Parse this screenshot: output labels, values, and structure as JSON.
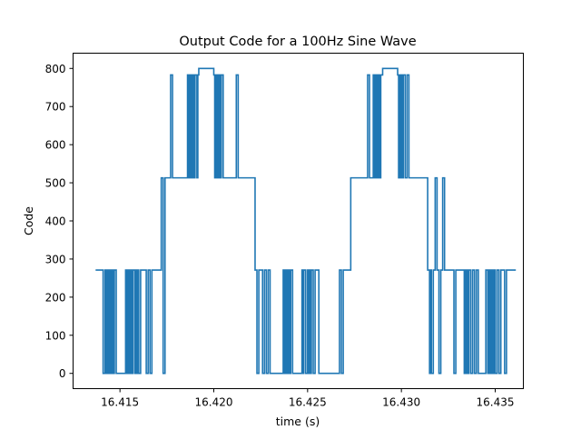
{
  "chart_data": {
    "type": "line",
    "title": "Output Code for a 100Hz Sine Wave",
    "xlabel": "time (s)",
    "ylabel": "Code",
    "xlim": [
      16.4125,
      16.4365
    ],
    "ylim": [
      -40,
      840
    ],
    "xticks": [
      16.415,
      16.42,
      16.425,
      16.43,
      16.435
    ],
    "xtick_labels": [
      "16.415",
      "16.420",
      "16.425",
      "16.430",
      "16.435"
    ],
    "yticks": [
      0,
      100,
      200,
      300,
      400,
      500,
      600,
      700,
      800
    ],
    "ytick_labels": [
      "0",
      "100",
      "200",
      "300",
      "400",
      "500",
      "600",
      "700",
      "800"
    ],
    "grid": false,
    "legend": "none",
    "series": [
      {
        "color": "#1f77b4",
        "steps": [
          [
            16.4137,
            271
          ],
          [
            16.4141,
            0
          ],
          [
            16.4142,
            271
          ],
          [
            16.41425,
            0
          ],
          [
            16.4143,
            271
          ],
          [
            16.41435,
            0
          ],
          [
            16.4144,
            271
          ],
          [
            16.41445,
            0
          ],
          [
            16.4145,
            271
          ],
          [
            16.41455,
            0
          ],
          [
            16.4146,
            271
          ],
          [
            16.41465,
            0
          ],
          [
            16.4147,
            271
          ],
          [
            16.4148,
            0
          ],
          [
            16.4153,
            271
          ],
          [
            16.41535,
            0
          ],
          [
            16.4154,
            271
          ],
          [
            16.41545,
            0
          ],
          [
            16.4155,
            271
          ],
          [
            16.41555,
            0
          ],
          [
            16.4156,
            271
          ],
          [
            16.41565,
            0
          ],
          [
            16.4157,
            271
          ],
          [
            16.4158,
            0
          ],
          [
            16.41585,
            271
          ],
          [
            16.4159,
            0
          ],
          [
            16.41595,
            271
          ],
          [
            16.416,
            0
          ],
          [
            16.4161,
            271
          ],
          [
            16.4163,
            271
          ],
          [
            16.4164,
            0
          ],
          [
            16.4165,
            271
          ],
          [
            16.4166,
            0
          ],
          [
            16.4167,
            271
          ],
          [
            16.4168,
            271
          ],
          [
            16.4172,
            513
          ],
          [
            16.4173,
            0
          ],
          [
            16.4174,
            513
          ],
          [
            16.4177,
            783
          ],
          [
            16.4178,
            513
          ],
          [
            16.4186,
            783
          ],
          [
            16.41865,
            513
          ],
          [
            16.4187,
            783
          ],
          [
            16.41875,
            513
          ],
          [
            16.4188,
            783
          ],
          [
            16.41885,
            513
          ],
          [
            16.4189,
            783
          ],
          [
            16.41895,
            513
          ],
          [
            16.419,
            783
          ],
          [
            16.4191,
            513
          ],
          [
            16.41915,
            783
          ],
          [
            16.4192,
            800
          ],
          [
            16.42,
            783
          ],
          [
            16.42005,
            513
          ],
          [
            16.4201,
            783
          ],
          [
            16.42015,
            513
          ],
          [
            16.4202,
            783
          ],
          [
            16.42025,
            513
          ],
          [
            16.4203,
            783
          ],
          [
            16.42035,
            513
          ],
          [
            16.4204,
            783
          ],
          [
            16.4205,
            513
          ],
          [
            16.4212,
            783
          ],
          [
            16.4213,
            513
          ],
          [
            16.4222,
            271
          ],
          [
            16.4223,
            0
          ],
          [
            16.4224,
            271
          ],
          [
            16.4226,
            0
          ],
          [
            16.4227,
            271
          ],
          [
            16.4228,
            0
          ],
          [
            16.4229,
            271
          ],
          [
            16.423,
            0
          ],
          [
            16.4237,
            271
          ],
          [
            16.42375,
            0
          ],
          [
            16.4238,
            271
          ],
          [
            16.42385,
            0
          ],
          [
            16.4239,
            271
          ],
          [
            16.42395,
            0
          ],
          [
            16.424,
            271
          ],
          [
            16.42405,
            0
          ],
          [
            16.4241,
            271
          ],
          [
            16.4242,
            0
          ],
          [
            16.4247,
            271
          ],
          [
            16.42475,
            0
          ],
          [
            16.4248,
            271
          ],
          [
            16.4249,
            0
          ],
          [
            16.425,
            271
          ],
          [
            16.42505,
            0
          ],
          [
            16.4251,
            271
          ],
          [
            16.42515,
            0
          ],
          [
            16.4252,
            271
          ],
          [
            16.4253,
            0
          ],
          [
            16.4254,
            271
          ],
          [
            16.4256,
            0
          ],
          [
            16.4267,
            271
          ],
          [
            16.4268,
            0
          ],
          [
            16.4269,
            271
          ],
          [
            16.4273,
            513
          ],
          [
            16.4281,
            513
          ],
          [
            16.4282,
            783
          ],
          [
            16.4283,
            513
          ],
          [
            16.4285,
            783
          ],
          [
            16.42855,
            513
          ],
          [
            16.4286,
            783
          ],
          [
            16.42865,
            513
          ],
          [
            16.4287,
            783
          ],
          [
            16.42875,
            513
          ],
          [
            16.4288,
            783
          ],
          [
            16.42885,
            513
          ],
          [
            16.4289,
            783
          ],
          [
            16.429,
            800
          ],
          [
            16.4298,
            783
          ],
          [
            16.42985,
            513
          ],
          [
            16.4299,
            783
          ],
          [
            16.42995,
            513
          ],
          [
            16.43,
            783
          ],
          [
            16.43005,
            513
          ],
          [
            16.4301,
            783
          ],
          [
            16.4302,
            513
          ],
          [
            16.4303,
            783
          ],
          [
            16.4304,
            513
          ],
          [
            16.4312,
            513
          ],
          [
            16.4314,
            271
          ],
          [
            16.4315,
            0
          ],
          [
            16.43155,
            271
          ],
          [
            16.4316,
            0
          ],
          [
            16.4317,
            271
          ],
          [
            16.4318,
            513
          ],
          [
            16.4319,
            271
          ],
          [
            16.432,
            0
          ],
          [
            16.4321,
            271
          ],
          [
            16.4322,
            513
          ],
          [
            16.4323,
            271
          ],
          [
            16.4327,
            271
          ],
          [
            16.4328,
            0
          ],
          [
            16.4329,
            271
          ],
          [
            16.4333,
            271
          ],
          [
            16.43335,
            0
          ],
          [
            16.4334,
            271
          ],
          [
            16.43345,
            0
          ],
          [
            16.4335,
            271
          ],
          [
            16.43355,
            0
          ],
          [
            16.4336,
            271
          ],
          [
            16.4337,
            0
          ],
          [
            16.4338,
            271
          ],
          [
            16.4339,
            0
          ],
          [
            16.434,
            271
          ],
          [
            16.4341,
            0
          ],
          [
            16.4345,
            271
          ],
          [
            16.4346,
            0
          ],
          [
            16.43465,
            271
          ],
          [
            16.4347,
            0
          ],
          [
            16.43475,
            271
          ],
          [
            16.4348,
            0
          ],
          [
            16.43485,
            271
          ],
          [
            16.4349,
            0
          ],
          [
            16.43495,
            271
          ],
          [
            16.435,
            0
          ],
          [
            16.4351,
            271
          ],
          [
            16.4352,
            0
          ],
          [
            16.4353,
            271
          ],
          [
            16.4355,
            0
          ],
          [
            16.4356,
            271
          ],
          [
            16.4361,
            271
          ]
        ]
      }
    ]
  }
}
